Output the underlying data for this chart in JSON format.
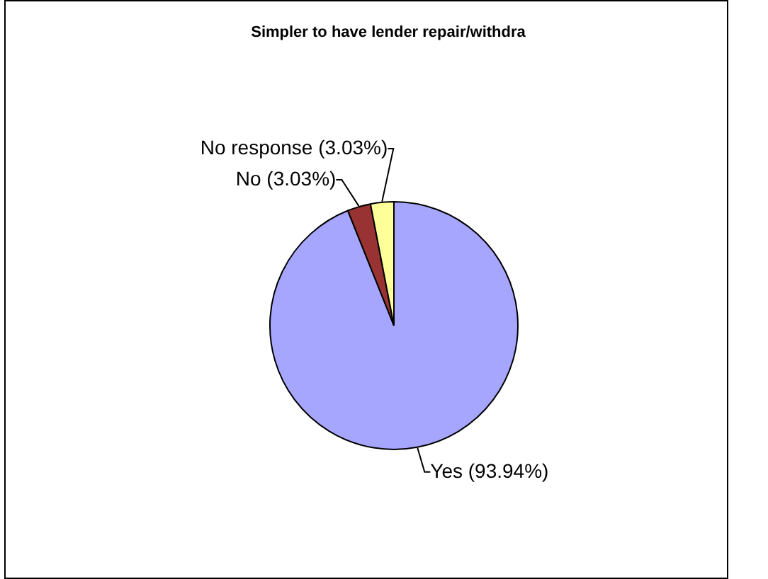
{
  "chart_data": {
    "type": "pie",
    "title": "Simpler to have lender repair/withdra",
    "categories": [
      "Yes",
      "No",
      "No response"
    ],
    "values": [
      93.94,
      3.03,
      3.03
    ],
    "colors": [
      "#a6a6ff",
      "#993333",
      "#ffff99"
    ],
    "value_labels": [
      "(93.94%)",
      "(3.03%)",
      "(3.03%)"
    ],
    "legend": false
  }
}
